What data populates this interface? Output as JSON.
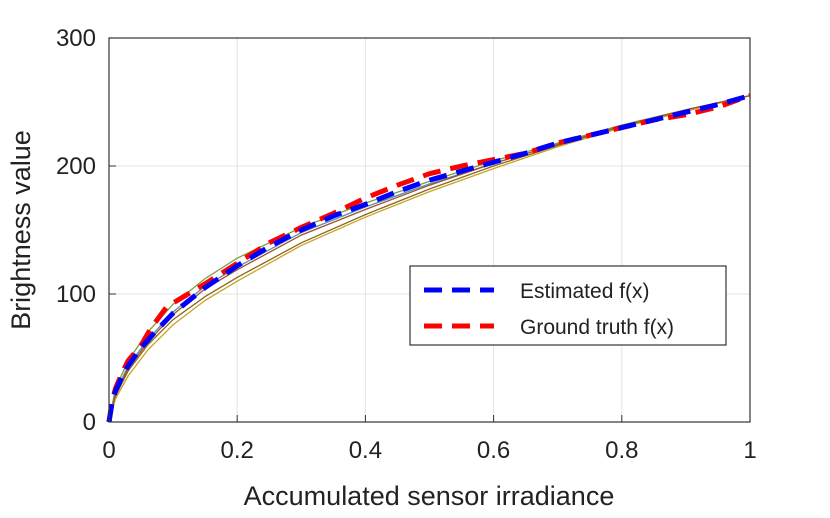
{
  "chart_data": {
    "type": "line",
    "xlabel": "Accumulated sensor irradiance",
    "ylabel": "Brightness value",
    "xlim": [
      0,
      1
    ],
    "ylim": [
      0,
      300
    ],
    "x_ticks": [
      0,
      0.2,
      0.4,
      0.6,
      0.8,
      1
    ],
    "x_tick_labels": [
      "0",
      "0.2",
      "0.4",
      "0.6",
      "0.8",
      "1"
    ],
    "y_ticks": [
      0,
      100,
      200,
      300
    ],
    "y_tick_labels": [
      "0",
      "100",
      "200",
      "300"
    ],
    "grid": true,
    "legend_position": "lower-right",
    "series": [
      {
        "name": "Estimated f(x)",
        "color": "#0000ff",
        "style": "dashed",
        "x": [
          0,
          0.005,
          0.01,
          0.02,
          0.03,
          0.05,
          0.075,
          0.1,
          0.15,
          0.2,
          0.25,
          0.3,
          0.35,
          0.4,
          0.45,
          0.5,
          0.55,
          0.6,
          0.65,
          0.7,
          0.75,
          0.8,
          0.85,
          0.9,
          0.95,
          1.0
        ],
        "y": [
          0,
          16,
          24,
          35,
          44,
          58,
          72,
          85,
          105,
          122,
          137,
          150,
          161,
          170,
          180,
          189,
          196,
          203,
          210,
          218,
          224,
          230,
          236,
          242,
          248,
          255
        ]
      },
      {
        "name": "Ground truth f(x)",
        "color": "#ff0000",
        "style": "dashed",
        "x": [
          0,
          0.005,
          0.01,
          0.02,
          0.03,
          0.05,
          0.065,
          0.09,
          0.12,
          0.15,
          0.2,
          0.25,
          0.3,
          0.35,
          0.4,
          0.45,
          0.5,
          0.55,
          0.6,
          0.65,
          0.7,
          0.75,
          0.8,
          0.85,
          0.9,
          0.95,
          1.0
        ],
        "y": [
          0,
          16,
          26,
          38,
          48,
          60,
          73,
          90,
          99,
          108,
          124,
          140,
          152,
          163,
          175,
          185,
          194,
          200,
          205,
          210,
          218,
          224,
          230,
          236,
          240,
          246,
          255
        ]
      }
    ],
    "thin_curves": [
      {
        "color": "#8b6914",
        "x": [
          0,
          0.01,
          0.03,
          0.06,
          0.1,
          0.15,
          0.2,
          0.3,
          0.4,
          0.5,
          0.6,
          0.7,
          0.8,
          0.9,
          1.0
        ],
        "y": [
          0,
          20,
          40,
          60,
          80,
          98,
          113,
          140,
          162,
          182,
          200,
          216,
          231,
          243,
          255
        ]
      },
      {
        "color": "#7aa03c",
        "x": [
          0,
          0.01,
          0.03,
          0.06,
          0.1,
          0.15,
          0.2,
          0.3,
          0.4,
          0.5,
          0.6,
          0.7,
          0.8,
          0.9,
          1.0
        ],
        "y": [
          0,
          26,
          48,
          70,
          92,
          112,
          128,
          152,
          171,
          188,
          204,
          218,
          232,
          244,
          255
        ]
      },
      {
        "color": "#5a8fb0",
        "x": [
          0,
          0.01,
          0.03,
          0.06,
          0.1,
          0.15,
          0.2,
          0.3,
          0.4,
          0.5,
          0.6,
          0.7,
          0.8,
          0.9,
          1.0
        ],
        "y": [
          0,
          23,
          44,
          64,
          86,
          106,
          121,
          148,
          168,
          186,
          202,
          217,
          231,
          243,
          255
        ]
      },
      {
        "color": "#c9a227",
        "x": [
          0,
          0.01,
          0.03,
          0.06,
          0.1,
          0.15,
          0.2,
          0.3,
          0.4,
          0.5,
          0.6,
          0.7,
          0.8,
          0.9,
          1.0
        ],
        "y": [
          0,
          18,
          36,
          56,
          76,
          95,
          110,
          138,
          160,
          180,
          198,
          215,
          230,
          243,
          255
        ]
      },
      {
        "color": "#a0522d",
        "x": [
          0,
          0.01,
          0.03,
          0.06,
          0.1,
          0.15,
          0.2,
          0.3,
          0.4,
          0.5,
          0.6,
          0.7,
          0.8,
          0.9,
          1.0
        ],
        "y": [
          0,
          21,
          42,
          62,
          84,
          104,
          119,
          146,
          166,
          185,
          202,
          217,
          231,
          244,
          255
        ]
      }
    ]
  }
}
